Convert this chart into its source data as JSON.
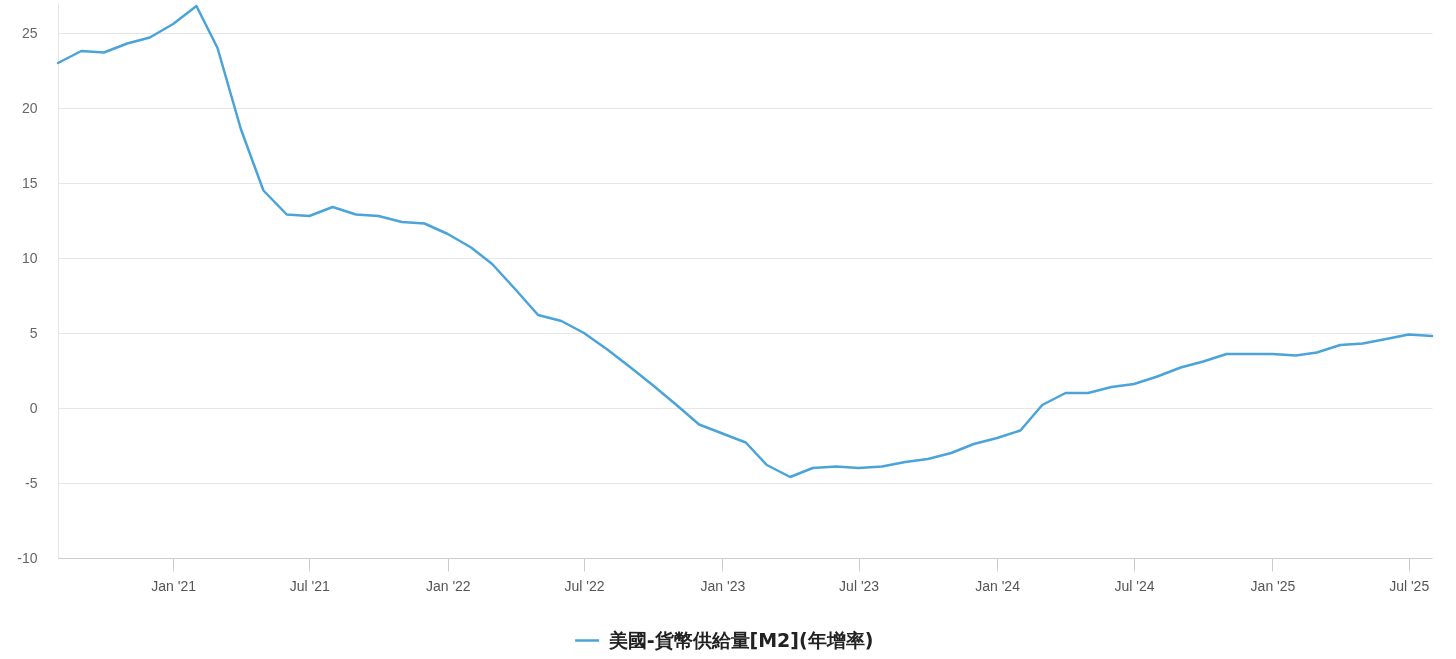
{
  "chart_data": {
    "type": "line",
    "x": [
      "2020-08",
      "2020-09",
      "2020-10",
      "2020-11",
      "2020-12",
      "2021-01",
      "2021-02",
      "2021-03",
      "2021-04",
      "2021-05",
      "2021-06",
      "2021-07",
      "2021-08",
      "2021-09",
      "2021-10",
      "2021-11",
      "2021-12",
      "2022-01",
      "2022-02",
      "2022-03",
      "2022-04",
      "2022-05",
      "2022-06",
      "2022-07",
      "2022-08",
      "2022-09",
      "2022-10",
      "2022-11",
      "2022-12",
      "2023-01",
      "2023-02",
      "2023-03",
      "2023-04",
      "2023-05",
      "2023-06",
      "2023-07",
      "2023-08",
      "2023-09",
      "2023-10",
      "2023-11",
      "2023-12",
      "2024-01",
      "2024-02",
      "2024-03",
      "2024-04",
      "2024-05",
      "2024-06",
      "2024-07",
      "2024-08",
      "2024-09",
      "2024-10",
      "2024-11",
      "2024-12",
      "2025-01",
      "2025-02",
      "2025-03",
      "2025-04",
      "2025-05",
      "2025-06",
      "2025-07",
      "2025-08"
    ],
    "series": [
      {
        "name": "美國-貨幣供給量[M2](年增率)",
        "color": "#4aa3d9",
        "values": [
          23.0,
          23.8,
          23.7,
          24.3,
          24.7,
          25.6,
          26.8,
          24.0,
          18.6,
          14.5,
          12.9,
          12.8,
          13.4,
          12.9,
          12.8,
          12.4,
          12.3,
          11.6,
          10.7,
          9.6,
          7.9,
          6.2,
          5.8,
          5.0,
          3.9,
          2.7,
          1.5,
          0.2,
          -1.1,
          -1.7,
          -2.3,
          -3.8,
          -4.6,
          -4.0,
          -3.9,
          -4.0,
          -3.9,
          -3.6,
          -3.4,
          -3.0,
          -2.4,
          -2.0,
          -1.5,
          0.2,
          1.0,
          1.0,
          1.4,
          1.6,
          2.1,
          2.7,
          3.1,
          3.6,
          3.6,
          3.6,
          3.5,
          3.7,
          4.2,
          4.3,
          4.6,
          4.9,
          4.8
        ]
      }
    ],
    "xlim": [
      "2020-08",
      "2025-08"
    ],
    "xticks": [
      {
        "value": "2021-01",
        "label": "Jan '21"
      },
      {
        "value": "2021-07",
        "label": "Jul '21"
      },
      {
        "value": "2022-01",
        "label": "Jan '22"
      },
      {
        "value": "2022-07",
        "label": "Jul '22"
      },
      {
        "value": "2023-01",
        "label": "Jan '23"
      },
      {
        "value": "2023-07",
        "label": "Jul '23"
      },
      {
        "value": "2024-01",
        "label": "Jan '24"
      },
      {
        "value": "2024-07",
        "label": "Jul '24"
      },
      {
        "value": "2025-01",
        "label": "Jan '25"
      },
      {
        "value": "2025-07",
        "label": "Jul '25"
      }
    ],
    "ylim": [
      -10,
      27
    ],
    "yticks": [
      -10,
      -5,
      0,
      5,
      10,
      15,
      20,
      25
    ],
    "grid": "y",
    "legend": "bottom",
    "line_style": "solid"
  }
}
